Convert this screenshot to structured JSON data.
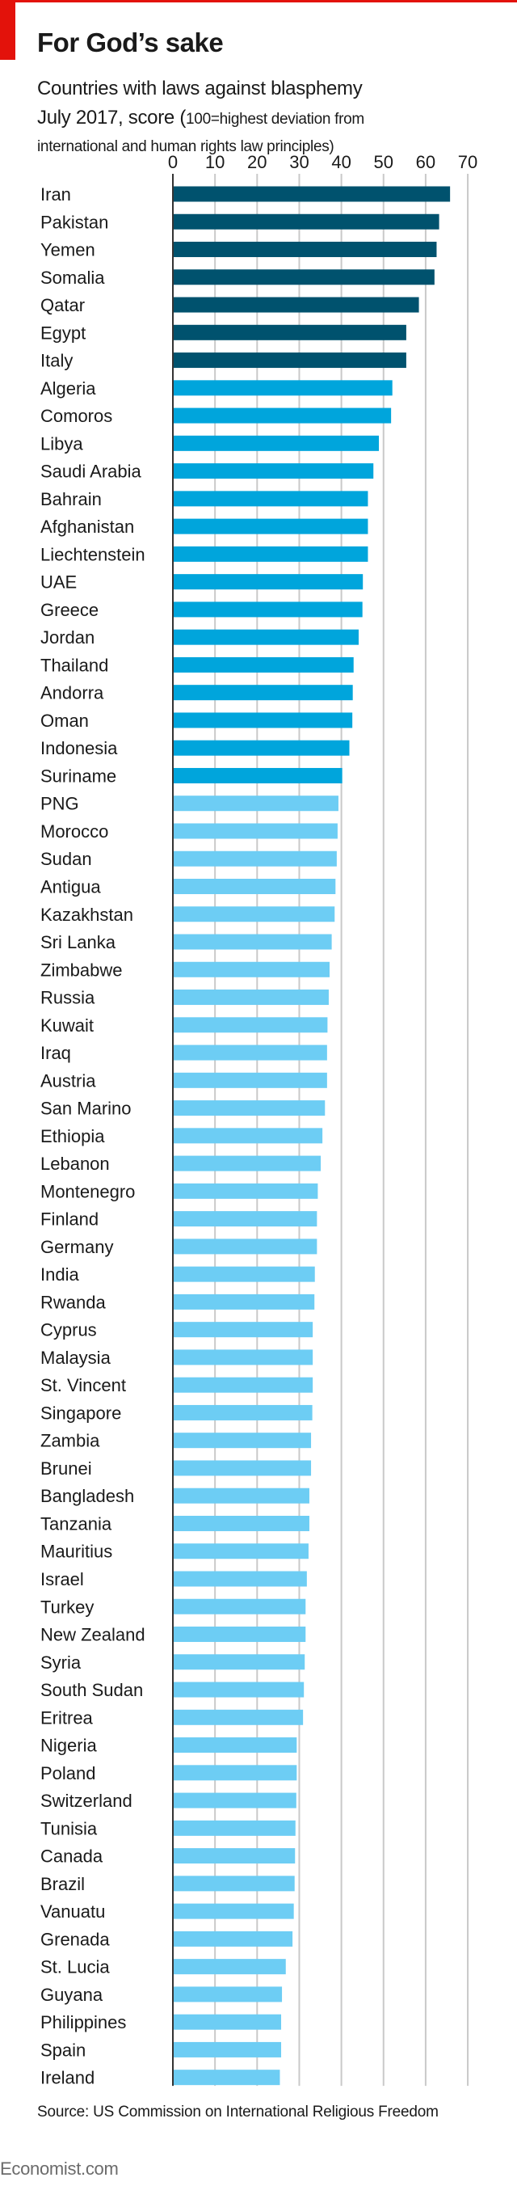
{
  "brand": {
    "accent": "#e3120b",
    "footer": "Economist.com"
  },
  "header": {
    "title": "For God’s sake",
    "subtitle_line1": "Countries with laws against blasphemy",
    "subtitle_line2_main": "July 2017, score (",
    "subtitle_line2_small": "100=highest deviation from",
    "subtitle_line3": "international and human rights law principles)"
  },
  "source": "Source: US Commission on International Religious Freedom",
  "colors": {
    "tier1": "#00526e",
    "tier2": "#00a5dc",
    "tier3": "#6dcdf4",
    "grid": "#c9c9c9",
    "axis": "#333333"
  },
  "chart_data": {
    "type": "bar",
    "orientation": "horizontal",
    "title": "For God’s sake",
    "subtitle": "Countries with laws against blasphemy, July 2017, score (100=highest deviation from international and human rights law principles)",
    "xlabel": "",
    "ylabel": "",
    "xlim": [
      0,
      70
    ],
    "xticks": [
      0,
      10,
      20,
      30,
      40,
      50,
      60,
      70
    ],
    "grid": true,
    "tick_position": "top",
    "categories": [
      "Iran",
      "Pakistan",
      "Yemen",
      "Somalia",
      "Qatar",
      "Egypt",
      "Italy",
      "Algeria",
      "Comoros",
      "Libya",
      "Saudi Arabia",
      "Bahrain",
      "Afghanistan",
      "Liechtenstein",
      "UAE",
      "Greece",
      "Jordan",
      "Thailand",
      "Andorra",
      "Oman",
      "Indonesia",
      "Suriname",
      "PNG",
      "Morocco",
      "Sudan",
      "Antigua",
      "Kazakhstan",
      "Sri Lanka",
      "Zimbabwe",
      "Russia",
      "Kuwait",
      "Iraq",
      "Austria",
      "San Marino",
      "Ethiopia",
      "Lebanon",
      "Montenegro",
      "Finland",
      "Germany",
      "India",
      "Rwanda",
      "Cyprus",
      "Malaysia",
      "St. Vincent",
      "Singapore",
      "Zambia",
      "Brunei",
      "Bangladesh",
      "Tanzania",
      "Mauritius",
      "Israel",
      "Turkey",
      "New Zealand",
      "Syria",
      "South Sudan",
      "Eritrea",
      "Nigeria",
      "Poland",
      "Switzerland",
      "Tunisia",
      "Canada",
      "Brazil",
      "Vanuatu",
      "Grenada",
      "St. Lucia",
      "Guyana",
      "Philippines",
      "Spain",
      "Ireland"
    ],
    "values": [
      65.8,
      63.2,
      62.6,
      62.1,
      58.4,
      55.4,
      55.4,
      52.1,
      51.8,
      48.9,
      47.6,
      46.3,
      46.3,
      46.3,
      45.1,
      45.0,
      44.1,
      42.9,
      42.7,
      42.6,
      41.9,
      40.2,
      39.3,
      39.1,
      38.9,
      38.6,
      38.4,
      37.7,
      37.2,
      37.0,
      36.7,
      36.6,
      36.6,
      36.1,
      35.5,
      35.1,
      34.4,
      34.2,
      34.2,
      33.7,
      33.6,
      33.2,
      33.2,
      33.2,
      33.1,
      32.8,
      32.8,
      32.4,
      32.4,
      32.2,
      31.8,
      31.5,
      31.5,
      31.3,
      31.1,
      30.9,
      29.4,
      29.4,
      29.3,
      29.1,
      29.0,
      28.9,
      28.7,
      28.4,
      26.8,
      25.9,
      25.7,
      25.7,
      25.4
    ],
    "tiers": [
      1,
      1,
      1,
      1,
      1,
      1,
      1,
      2,
      2,
      2,
      2,
      2,
      2,
      2,
      2,
      2,
      2,
      2,
      2,
      2,
      2,
      2,
      3,
      3,
      3,
      3,
      3,
      3,
      3,
      3,
      3,
      3,
      3,
      3,
      3,
      3,
      3,
      3,
      3,
      3,
      3,
      3,
      3,
      3,
      3,
      3,
      3,
      3,
      3,
      3,
      3,
      3,
      3,
      3,
      3,
      3,
      3,
      3,
      3,
      3,
      3,
      3,
      3,
      3,
      3,
      3,
      3,
      3,
      3
    ]
  }
}
